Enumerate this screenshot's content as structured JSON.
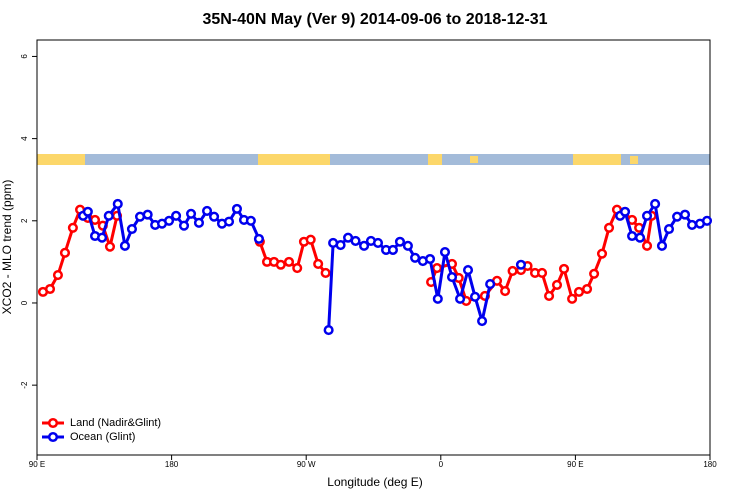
{
  "chart_data": {
    "type": "line",
    "title": "35N-40N May (Ver 9)   2014-09-06 to 2018-12-31",
    "x_label": "Longitude (deg E)",
    "y_label": "XCO2 - MLO trend (ppm)",
    "xlim": [
      90,
      540
    ],
    "xticks": [
      {
        "value": 90,
        "label": "90 E"
      },
      180,
      {
        "value": 270,
        "label": "90 W"
      },
      {
        "value": 360,
        "label": "0"
      },
      {
        "value": 450,
        "label": "90 E"
      },
      {
        "value": 540,
        "label": "180"
      }
    ],
    "ylim": [
      -3.7,
      6.4
    ],
    "yticks": [
      -2,
      0,
      2,
      4,
      6
    ],
    "legend": "bottom-left",
    "series": [
      {
        "name": "Land (Nadir&Glint)",
        "color": "#ff0000",
        "x": [
          94,
          98.7,
          104,
          108.7,
          114,
          118.8,
          124,
          128.8,
          134,
          138.8,
          143.5,
          null,
          239,
          243.8,
          248.5,
          253,
          258.5,
          264,
          268.5,
          273,
          278,
          283,
          null,
          353.5,
          357.5,
          367.5,
          372,
          377,
          389.5,
          397.6,
          403,
          408,
          413.6,
          418,
          423,
          427.7,
          432.4,
          437.7,
          442.4,
          447.8,
          452.4,
          457.8,
          462.5,
          467.8,
          472.5,
          477.8,
          482.5,
          487.9,
          492.6,
          497.9,
          501
        ],
        "values": [
          0.27,
          0.34,
          0.68,
          1.22,
          1.83,
          2.27,
          2.07,
          2.02,
          1.88,
          1.37,
          2.12,
          null,
          1.49,
          1.0,
          1.0,
          0.93,
          1.0,
          0.85,
          1.49,
          1.54,
          0.95,
          0.73,
          null,
          0.51,
          0.85,
          0.95,
          0.61,
          0.05,
          0.17,
          0.54,
          0.29,
          0.78,
          0.8,
          0.9,
          0.73,
          0.73,
          0.17,
          0.44,
          0.83,
          0.1,
          0.27,
          0.34,
          0.71,
          1.2,
          1.83,
          2.27,
          2.2,
          2.02,
          1.83,
          1.39,
          2.12
        ]
      },
      {
        "name": "Ocean (Glint)",
        "color": "#0000ee",
        "x": [
          120.8,
          124,
          128.8,
          133.5,
          138,
          144,
          148.8,
          153.5,
          158.9,
          164,
          169,
          173.6,
          178.3,
          183,
          188.3,
          193,
          198.3,
          203.7,
          208.4,
          213.7,
          218.4,
          223.7,
          228.4,
          233,
          238.4,
          null,
          285,
          288,
          293,
          298,
          303,
          308.7,
          313.3,
          318,
          323.4,
          328,
          332.7,
          338,
          342.8,
          348,
          352.8,
          358,
          362.8,
          367.5,
          372.9,
          378.2,
          382.9,
          387.6,
          393,
          null,
          413.6,
          null,
          479.9,
          483.2,
          487.9,
          493.2,
          497.9,
          503.3,
          507.9,
          512.6,
          518,
          523.3,
          528,
          533.3,
          538
        ],
        "values": [
          2.12,
          2.22,
          1.63,
          1.59,
          2.12,
          2.41,
          1.39,
          1.8,
          2.1,
          2.15,
          1.9,
          1.93,
          2.0,
          2.12,
          1.88,
          2.17,
          1.95,
          2.24,
          2.1,
          1.93,
          1.98,
          2.29,
          2.02,
          2.0,
          1.56,
          null,
          -0.66,
          1.46,
          1.41,
          1.59,
          1.51,
          1.39,
          1.51,
          1.46,
          1.29,
          1.29,
          1.49,
          1.39,
          1.1,
          1.02,
          1.07,
          0.1,
          1.24,
          0.63,
          0.1,
          0.8,
          0.15,
          -0.44,
          0.46,
          null,
          0.93,
          null,
          2.12,
          2.22,
          1.63,
          1.59,
          2.12,
          2.41,
          1.39,
          1.8,
          2.1,
          2.15,
          1.9,
          1.93,
          2.0
        ]
      }
    ]
  }
}
